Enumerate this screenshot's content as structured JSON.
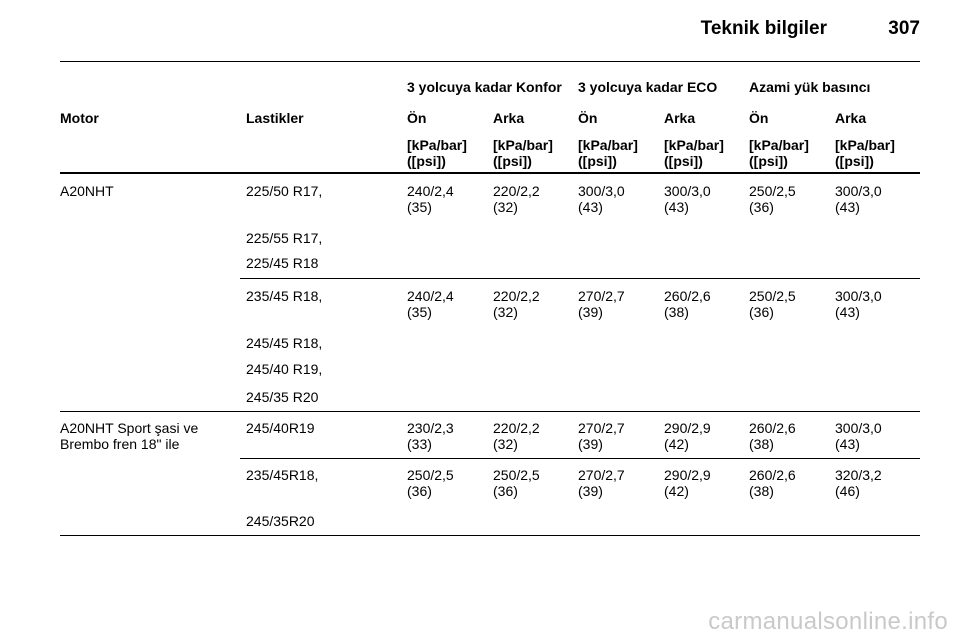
{
  "header": {
    "title": "Teknik bilgiler",
    "page_number": "307"
  },
  "table": {
    "group_headers": [
      "3 yolcuya kadar Konfor",
      "3 yolcuya kadar ECO",
      "Azami yük basıncı"
    ],
    "col_motor": "Motor",
    "col_tires": "Lastikler",
    "col_front": "Ön",
    "col_rear": "Arka",
    "unit_line1": "[kPa/bar]",
    "unit_line2": "([psi])",
    "rows": [
      {
        "motor": [
          "A20NHT",
          ""
        ],
        "tires": [
          "225/50 R17,",
          "225/55 R17,",
          "225/45 R18"
        ],
        "values": [
          [
            "240/2,4",
            "(35)"
          ],
          [
            "220/2,2",
            "(32)"
          ],
          [
            "300/3,0",
            "(43)"
          ],
          [
            "300/3,0",
            "(43)"
          ],
          [
            "250/2,5",
            "(36)"
          ],
          [
            "300/3,0",
            "(43)"
          ]
        ]
      },
      {
        "tires": [
          "235/45 R18,",
          "245/45 R18,",
          "245/40 R19,",
          "245/35 R20"
        ],
        "values": [
          [
            "240/2,4",
            "(35)"
          ],
          [
            "220/2,2",
            "(32)"
          ],
          [
            "270/2,7",
            "(39)"
          ],
          [
            "260/2,6",
            "(38)"
          ],
          [
            "250/2,5",
            "(36)"
          ],
          [
            "300/3,0",
            "(43)"
          ]
        ]
      },
      {
        "motor": [
          "A20NHT Sport şasi ve",
          "Brembo fren 18\" ile"
        ],
        "tires": [
          "245/40R19"
        ],
        "values": [
          [
            "230/2,3",
            "(33)"
          ],
          [
            "220/2,2",
            "(32)"
          ],
          [
            "270/2,7",
            "(39)"
          ],
          [
            "290/2,9",
            "(42)"
          ],
          [
            "260/2,6",
            "(38)"
          ],
          [
            "300/3,0",
            "(43)"
          ]
        ]
      },
      {
        "tires": [
          "235/45R18,",
          "245/35R20"
        ],
        "values": [
          [
            "250/2,5",
            "(36)"
          ],
          [
            "250/2,5",
            "(36)"
          ],
          [
            "270/2,7",
            "(39)"
          ],
          [
            "290/2,9",
            "(42)"
          ],
          [
            "260/2,6",
            "(38)"
          ],
          [
            "320/3,2",
            "(46)"
          ]
        ]
      }
    ]
  },
  "watermark": "carmanualsonline.info"
}
